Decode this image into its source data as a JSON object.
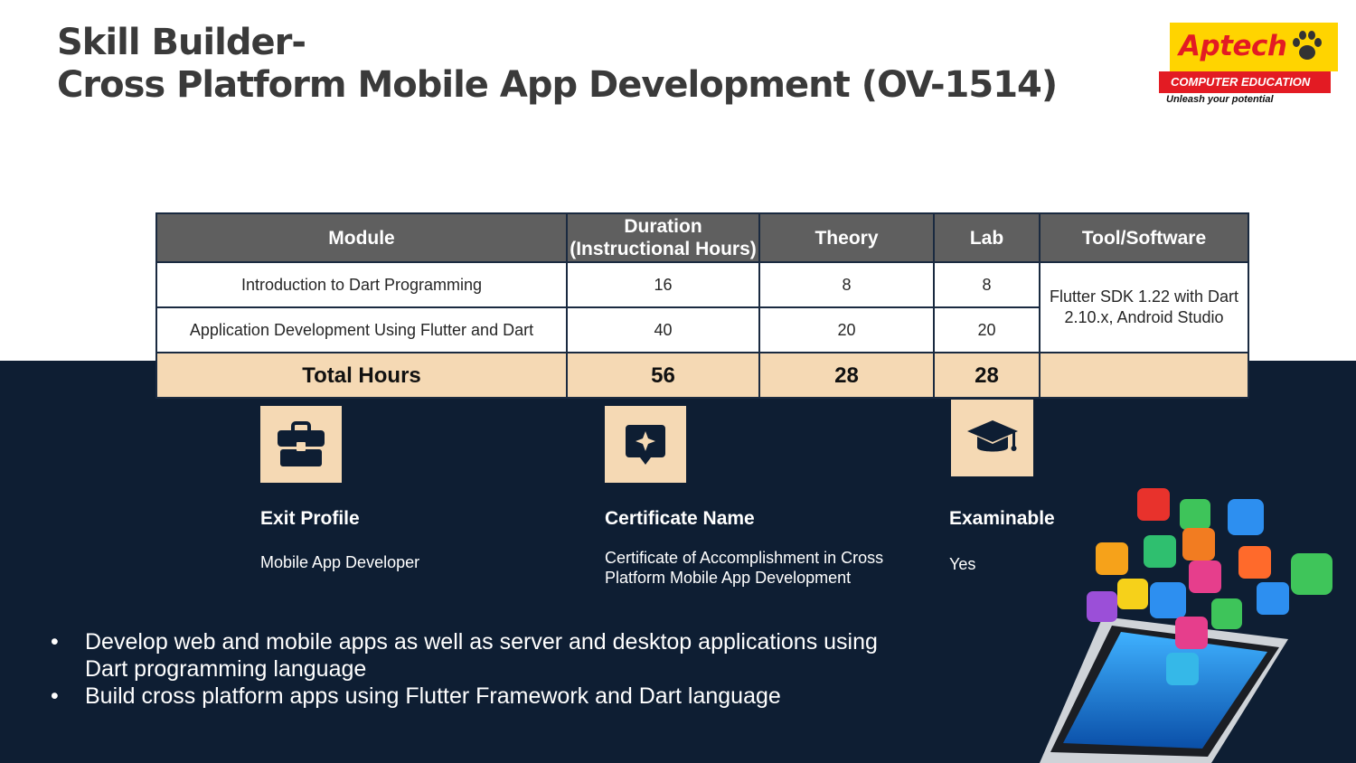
{
  "title": {
    "line1": "Skill Builder-",
    "line2": "Cross Platform Mobile App Development (OV-1514)"
  },
  "logo": {
    "wordmark": "Aptech",
    "subtitle": "COMPUTER EDUCATION",
    "tagline": "Unleash your potential",
    "icon": "paw-icon",
    "colors": {
      "yellow": "#ffd400",
      "red": "#e31b23"
    }
  },
  "table": {
    "headers": {
      "module": "Module",
      "duration_line1": "Duration",
      "duration_line2": "(Instructional Hours)",
      "theory": "Theory",
      "lab": "Lab",
      "tool": "Tool/Software"
    },
    "rows": [
      {
        "module": "Introduction to Dart Programming",
        "duration": "16",
        "theory": "8",
        "lab": "8"
      },
      {
        "module": "Application Development Using Flutter and Dart",
        "duration": "40",
        "theory": "20",
        "lab": "20"
      }
    ],
    "tool_line1": "Flutter SDK 1.22 with Dart",
    "tool_line2": "2.10.x, Android Studio",
    "total": {
      "label": "Total Hours",
      "duration": "56",
      "theory": "28",
      "lab": "28",
      "tool": ""
    }
  },
  "features": {
    "exit_profile": {
      "icon": "briefcase-icon",
      "title": "Exit Profile",
      "value": "Mobile App Developer"
    },
    "certificate": {
      "icon": "certificate-icon",
      "title": "Certificate Name",
      "value_line1": "Certificate of Accomplishment in Cross",
      "value_line2": "Platform Mobile App Development"
    },
    "examinable": {
      "icon": "graduation-cap-icon",
      "title": "Examinable",
      "value": "Yes"
    }
  },
  "bullets": {
    "item1_line1": "Develop web and mobile apps as well as server and desktop applications using",
    "item1_line2": "Dart programming language",
    "item2": "Build cross platform apps using Flutter Framework and Dart language"
  },
  "colors": {
    "dark_panel": "#0e1e33",
    "table_header": "#5f5f5f",
    "accent_peach": "#f5d9b4",
    "title_text": "#3a3a3a"
  },
  "decoration": {
    "illustration": "smartphone-app-icons-illustration"
  }
}
